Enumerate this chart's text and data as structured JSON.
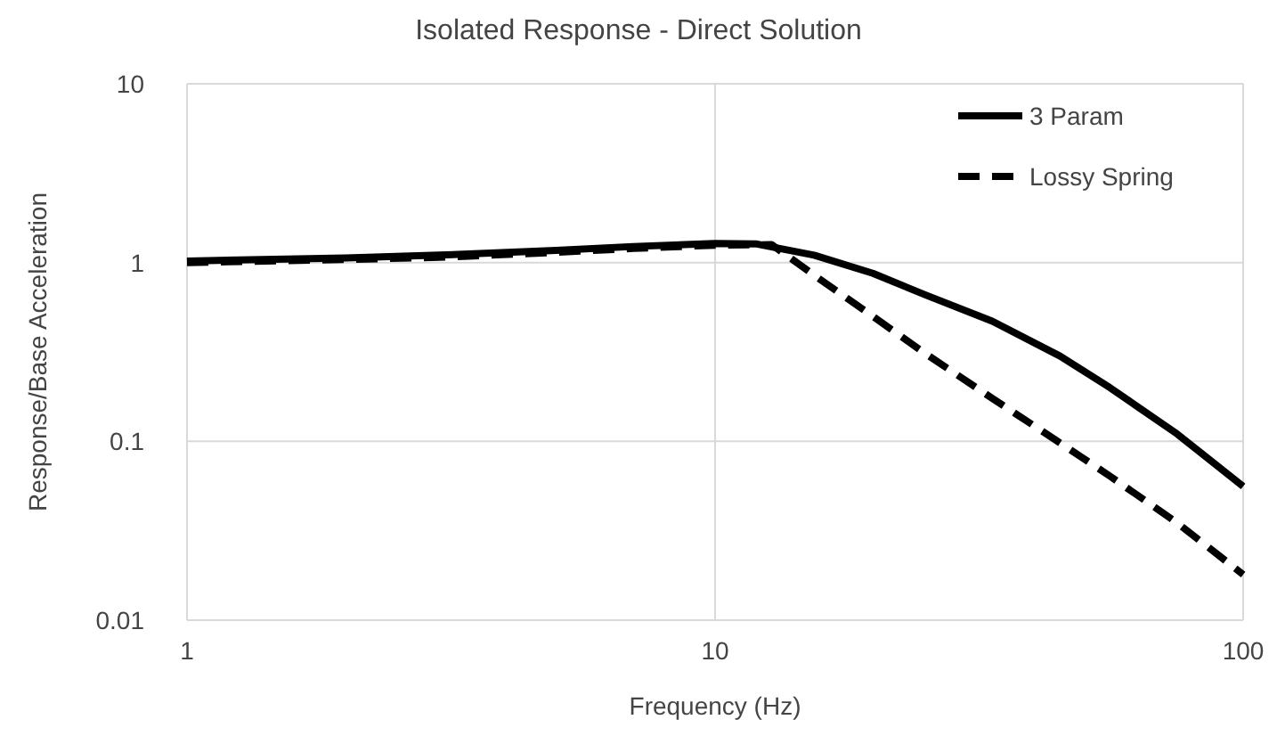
{
  "chart_data": {
    "type": "line",
    "title": "Isolated Response - Direct Solution",
    "xlabel": "Frequency (Hz)",
    "ylabel": "Response/Base Acceleration",
    "log": "xy",
    "xlim": [
      1,
      100
    ],
    "xticks": [
      1,
      10,
      100
    ],
    "ylim": [
      0.01,
      10
    ],
    "yticks": [
      0.01,
      0.1,
      1,
      10
    ],
    "grid": true,
    "legend": "top right",
    "series": [
      {
        "name": "3 Param",
        "color": "#000000",
        "line_style": "solid",
        "x": [
          1,
          2,
          3,
          5,
          7,
          10,
          12,
          15.4,
          19.9,
          25,
          33.5,
          45,
          55.9,
          75,
          100
        ],
        "values": [
          1.02,
          1.06,
          1.1,
          1.17,
          1.23,
          1.28,
          1.27,
          1.1,
          0.87,
          0.66,
          0.47,
          0.3,
          0.2,
          0.11,
          0.056
        ]
      },
      {
        "name": "Lossy Spring",
        "color": "#000000",
        "line_style": "dashed",
        "x": [
          1,
          2,
          3,
          5,
          7,
          10,
          12.8,
          15.4,
          19.9,
          25,
          33.5,
          45,
          55.9,
          75,
          100
        ],
        "values": [
          1.0,
          1.04,
          1.07,
          1.14,
          1.2,
          1.25,
          1.26,
          0.85,
          0.5,
          0.31,
          0.174,
          0.098,
          0.064,
          0.035,
          0.018
        ]
      }
    ]
  }
}
